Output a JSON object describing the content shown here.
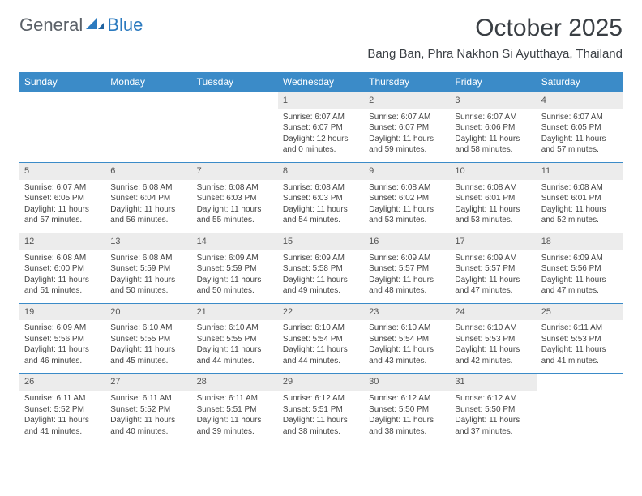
{
  "brand": {
    "part1": "General",
    "part2": "Blue"
  },
  "title": "October 2025",
  "location": "Bang Ban, Phra Nakhon Si Ayutthaya, Thailand",
  "colors": {
    "header_bg": "#3b8bc8",
    "header_text": "#ffffff",
    "daynum_bg": "#ececec",
    "border": "#3b8bc8",
    "body_text": "#444444",
    "title_text": "#3a3f44",
    "logo_gray": "#5b6168",
    "logo_blue": "#2b7abf",
    "page_bg": "#ffffff"
  },
  "typography": {
    "title_fontsize": 30,
    "location_fontsize": 15,
    "header_fontsize": 12,
    "cell_fontsize": 10,
    "daynum_fontsize": 11
  },
  "day_names": [
    "Sunday",
    "Monday",
    "Tuesday",
    "Wednesday",
    "Thursday",
    "Friday",
    "Saturday"
  ],
  "weeks": [
    [
      {
        "n": "",
        "empty": true
      },
      {
        "n": "",
        "empty": true
      },
      {
        "n": "",
        "empty": true
      },
      {
        "n": "1",
        "sunrise": "Sunrise: 6:07 AM",
        "sunset": "Sunset: 6:07 PM",
        "daylight": "Daylight: 12 hours and 0 minutes."
      },
      {
        "n": "2",
        "sunrise": "Sunrise: 6:07 AM",
        "sunset": "Sunset: 6:07 PM",
        "daylight": "Daylight: 11 hours and 59 minutes."
      },
      {
        "n": "3",
        "sunrise": "Sunrise: 6:07 AM",
        "sunset": "Sunset: 6:06 PM",
        "daylight": "Daylight: 11 hours and 58 minutes."
      },
      {
        "n": "4",
        "sunrise": "Sunrise: 6:07 AM",
        "sunset": "Sunset: 6:05 PM",
        "daylight": "Daylight: 11 hours and 57 minutes."
      }
    ],
    [
      {
        "n": "5",
        "sunrise": "Sunrise: 6:07 AM",
        "sunset": "Sunset: 6:05 PM",
        "daylight": "Daylight: 11 hours and 57 minutes."
      },
      {
        "n": "6",
        "sunrise": "Sunrise: 6:08 AM",
        "sunset": "Sunset: 6:04 PM",
        "daylight": "Daylight: 11 hours and 56 minutes."
      },
      {
        "n": "7",
        "sunrise": "Sunrise: 6:08 AM",
        "sunset": "Sunset: 6:03 PM",
        "daylight": "Daylight: 11 hours and 55 minutes."
      },
      {
        "n": "8",
        "sunrise": "Sunrise: 6:08 AM",
        "sunset": "Sunset: 6:03 PM",
        "daylight": "Daylight: 11 hours and 54 minutes."
      },
      {
        "n": "9",
        "sunrise": "Sunrise: 6:08 AM",
        "sunset": "Sunset: 6:02 PM",
        "daylight": "Daylight: 11 hours and 53 minutes."
      },
      {
        "n": "10",
        "sunrise": "Sunrise: 6:08 AM",
        "sunset": "Sunset: 6:01 PM",
        "daylight": "Daylight: 11 hours and 53 minutes."
      },
      {
        "n": "11",
        "sunrise": "Sunrise: 6:08 AM",
        "sunset": "Sunset: 6:01 PM",
        "daylight": "Daylight: 11 hours and 52 minutes."
      }
    ],
    [
      {
        "n": "12",
        "sunrise": "Sunrise: 6:08 AM",
        "sunset": "Sunset: 6:00 PM",
        "daylight": "Daylight: 11 hours and 51 minutes."
      },
      {
        "n": "13",
        "sunrise": "Sunrise: 6:08 AM",
        "sunset": "Sunset: 5:59 PM",
        "daylight": "Daylight: 11 hours and 50 minutes."
      },
      {
        "n": "14",
        "sunrise": "Sunrise: 6:09 AM",
        "sunset": "Sunset: 5:59 PM",
        "daylight": "Daylight: 11 hours and 50 minutes."
      },
      {
        "n": "15",
        "sunrise": "Sunrise: 6:09 AM",
        "sunset": "Sunset: 5:58 PM",
        "daylight": "Daylight: 11 hours and 49 minutes."
      },
      {
        "n": "16",
        "sunrise": "Sunrise: 6:09 AM",
        "sunset": "Sunset: 5:57 PM",
        "daylight": "Daylight: 11 hours and 48 minutes."
      },
      {
        "n": "17",
        "sunrise": "Sunrise: 6:09 AM",
        "sunset": "Sunset: 5:57 PM",
        "daylight": "Daylight: 11 hours and 47 minutes."
      },
      {
        "n": "18",
        "sunrise": "Sunrise: 6:09 AM",
        "sunset": "Sunset: 5:56 PM",
        "daylight": "Daylight: 11 hours and 47 minutes."
      }
    ],
    [
      {
        "n": "19",
        "sunrise": "Sunrise: 6:09 AM",
        "sunset": "Sunset: 5:56 PM",
        "daylight": "Daylight: 11 hours and 46 minutes."
      },
      {
        "n": "20",
        "sunrise": "Sunrise: 6:10 AM",
        "sunset": "Sunset: 5:55 PM",
        "daylight": "Daylight: 11 hours and 45 minutes."
      },
      {
        "n": "21",
        "sunrise": "Sunrise: 6:10 AM",
        "sunset": "Sunset: 5:55 PM",
        "daylight": "Daylight: 11 hours and 44 minutes."
      },
      {
        "n": "22",
        "sunrise": "Sunrise: 6:10 AM",
        "sunset": "Sunset: 5:54 PM",
        "daylight": "Daylight: 11 hours and 44 minutes."
      },
      {
        "n": "23",
        "sunrise": "Sunrise: 6:10 AM",
        "sunset": "Sunset: 5:54 PM",
        "daylight": "Daylight: 11 hours and 43 minutes."
      },
      {
        "n": "24",
        "sunrise": "Sunrise: 6:10 AM",
        "sunset": "Sunset: 5:53 PM",
        "daylight": "Daylight: 11 hours and 42 minutes."
      },
      {
        "n": "25",
        "sunrise": "Sunrise: 6:11 AM",
        "sunset": "Sunset: 5:53 PM",
        "daylight": "Daylight: 11 hours and 41 minutes."
      }
    ],
    [
      {
        "n": "26",
        "sunrise": "Sunrise: 6:11 AM",
        "sunset": "Sunset: 5:52 PM",
        "daylight": "Daylight: 11 hours and 41 minutes."
      },
      {
        "n": "27",
        "sunrise": "Sunrise: 6:11 AM",
        "sunset": "Sunset: 5:52 PM",
        "daylight": "Daylight: 11 hours and 40 minutes."
      },
      {
        "n": "28",
        "sunrise": "Sunrise: 6:11 AM",
        "sunset": "Sunset: 5:51 PM",
        "daylight": "Daylight: 11 hours and 39 minutes."
      },
      {
        "n": "29",
        "sunrise": "Sunrise: 6:12 AM",
        "sunset": "Sunset: 5:51 PM",
        "daylight": "Daylight: 11 hours and 38 minutes."
      },
      {
        "n": "30",
        "sunrise": "Sunrise: 6:12 AM",
        "sunset": "Sunset: 5:50 PM",
        "daylight": "Daylight: 11 hours and 38 minutes."
      },
      {
        "n": "31",
        "sunrise": "Sunrise: 6:12 AM",
        "sunset": "Sunset: 5:50 PM",
        "daylight": "Daylight: 11 hours and 37 minutes."
      },
      {
        "n": "",
        "empty": true
      }
    ]
  ]
}
